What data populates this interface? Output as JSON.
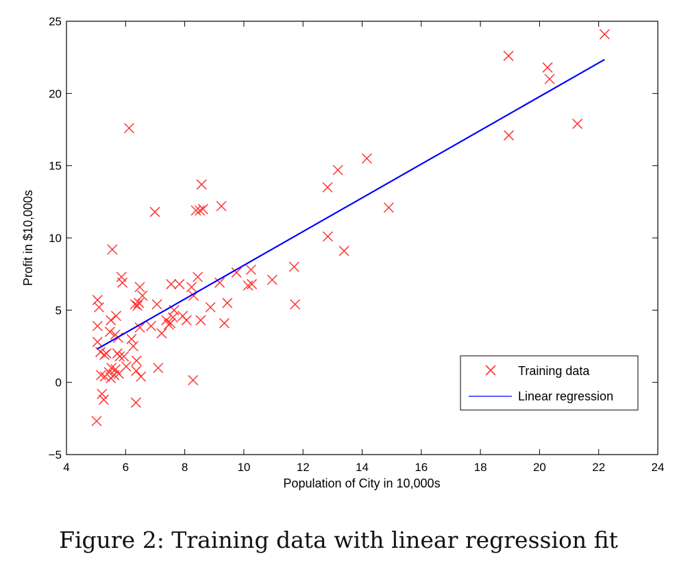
{
  "caption": "Figure 2: Training data with linear regression fit",
  "chart_data": {
    "type": "scatter",
    "title": "",
    "xlabel": "Population of City in 10,000s",
    "ylabel": "Profit in $10,000s",
    "xlim": [
      4,
      24
    ],
    "ylim": [
      -5,
      25
    ],
    "xticks": [
      4,
      6,
      8,
      10,
      12,
      14,
      16,
      18,
      20,
      22,
      24
    ],
    "yticks": [
      -5,
      0,
      5,
      10,
      15,
      20,
      25
    ],
    "xtick_labels": [
      "4",
      "6",
      "8",
      "10",
      "12",
      "14",
      "16",
      "18",
      "20",
      "22",
      "24"
    ],
    "ytick_labels": [
      "−5",
      "0",
      "5",
      "10",
      "15",
      "20",
      "25"
    ],
    "grid": false,
    "legend_position": "bottom-right",
    "series": [
      {
        "name": "Training data",
        "kind": "scatter",
        "marker": "x",
        "color": "#ff3333",
        "points": [
          [
            5.02,
            -2.68
          ],
          [
            5.05,
            5.7
          ],
          [
            5.1,
            5.2
          ],
          [
            5.05,
            3.9
          ],
          [
            5.05,
            2.8
          ],
          [
            5.15,
            2.1
          ],
          [
            5.17,
            0.5
          ],
          [
            5.2,
            -0.8
          ],
          [
            5.26,
            -1.2
          ],
          [
            5.3,
            0.4
          ],
          [
            5.28,
            1.9
          ],
          [
            5.35,
            2.0
          ],
          [
            5.44,
            0.7
          ],
          [
            5.5,
            0.3
          ],
          [
            5.52,
            1.0
          ],
          [
            5.47,
            3.5
          ],
          [
            5.5,
            4.3
          ],
          [
            5.55,
            9.2
          ],
          [
            5.62,
            0.5
          ],
          [
            5.66,
            0.9
          ],
          [
            5.65,
            3.3
          ],
          [
            5.68,
            4.6
          ],
          [
            5.72,
            2.0
          ],
          [
            5.75,
            3.1
          ],
          [
            5.77,
            0.6
          ],
          [
            5.8,
            1.8
          ],
          [
            5.86,
            7.3
          ],
          [
            5.89,
            6.9
          ],
          [
            5.94,
            1.8
          ],
          [
            6.02,
            1.1
          ],
          [
            6.12,
            17.6
          ],
          [
            6.2,
            3.0
          ],
          [
            6.26,
            2.5
          ],
          [
            6.32,
            5.4
          ],
          [
            6.36,
            0.8
          ],
          [
            6.37,
            1.5
          ],
          [
            6.35,
            -1.4
          ],
          [
            6.4,
            5.3
          ],
          [
            6.45,
            5.5
          ],
          [
            6.48,
            6.6
          ],
          [
            6.52,
            0.4
          ],
          [
            6.57,
            6.0
          ],
          [
            6.48,
            3.8
          ],
          [
            6.86,
            3.9
          ],
          [
            6.99,
            11.8
          ],
          [
            7.06,
            5.4
          ],
          [
            7.1,
            1.0
          ],
          [
            7.22,
            3.4
          ],
          [
            7.38,
            4.3
          ],
          [
            7.46,
            4.0
          ],
          [
            7.52,
            4.1
          ],
          [
            7.54,
            6.8
          ],
          [
            7.6,
            4.5
          ],
          [
            7.64,
            5.0
          ],
          [
            7.82,
            6.8
          ],
          [
            7.93,
            4.6
          ],
          [
            8.06,
            4.3
          ],
          [
            8.23,
            6.6
          ],
          [
            8.3,
            6.0
          ],
          [
            8.28,
            0.15
          ],
          [
            8.38,
            11.9
          ],
          [
            8.44,
            7.3
          ],
          [
            8.51,
            11.9
          ],
          [
            8.54,
            4.3
          ],
          [
            8.57,
            13.7
          ],
          [
            8.62,
            12.0
          ],
          [
            8.87,
            5.2
          ],
          [
            9.18,
            6.9
          ],
          [
            9.24,
            12.2
          ],
          [
            9.34,
            4.1
          ],
          [
            9.44,
            5.5
          ],
          [
            9.75,
            7.6
          ],
          [
            10.14,
            6.7
          ],
          [
            10.24,
            7.8
          ],
          [
            10.27,
            6.8
          ],
          [
            10.96,
            7.1
          ],
          [
            11.7,
            8.0
          ],
          [
            11.73,
            5.4
          ],
          [
            12.83,
            13.5
          ],
          [
            12.84,
            10.1
          ],
          [
            13.18,
            14.7
          ],
          [
            13.39,
            9.1
          ],
          [
            14.16,
            15.5
          ],
          [
            14.9,
            12.1
          ],
          [
            18.95,
            22.6
          ],
          [
            18.96,
            17.1
          ],
          [
            20.27,
            21.8
          ],
          [
            20.34,
            21.0
          ],
          [
            21.28,
            17.9
          ],
          [
            22.2,
            24.1
          ]
        ]
      },
      {
        "name": "Linear regression",
        "kind": "line",
        "color": "#0000ff",
        "x": [
          5.03,
          22.2
        ],
        "y": [
          2.3,
          22.35
        ]
      }
    ]
  }
}
